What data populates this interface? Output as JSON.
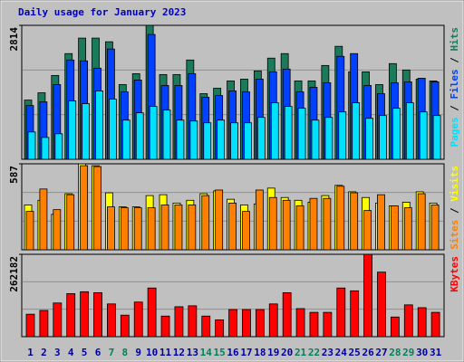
{
  "chart_data": [
    {
      "type": "bar",
      "title": "Daily usage for January 2023",
      "ylim": [
        0,
        2814
      ],
      "yticks": [
        2814
      ],
      "legend_separator": " / ",
      "series": [
        {
          "name": "Hits",
          "color": "#1a7a5a",
          "values": [
            1244,
            1397,
            1761,
            2220,
            2546,
            2546,
            2469,
            1569,
            1799,
            2814,
            1780,
            1780,
            2086,
            1378,
            1493,
            1646,
            1684,
            1857,
            2125,
            2220,
            1646,
            1646,
            1971,
            2373,
            1837,
            1837,
            1569,
            2010,
            1876,
            1684,
            1646
          ]
        },
        {
          "name": "Files",
          "color": "#0040ff",
          "values": [
            1129,
            1206,
            1569,
            2086,
            2067,
            1914,
            2316,
            1416,
            1665,
            2622,
            1550,
            1550,
            1799,
            1302,
            1340,
            1436,
            1416,
            1684,
            1837,
            1895,
            1416,
            1512,
            1608,
            2163,
            2220,
            1550,
            1378,
            1608,
            1627,
            1703,
            1627
          ]
        },
        {
          "name": "Pages",
          "color": "#00e0ff",
          "values": [
            574,
            459,
            536,
            1225,
            1168,
            1436,
            1263,
            823,
            976,
            1110,
            1034,
            823,
            804,
            766,
            823,
            766,
            766,
            880,
            1187,
            1110,
            1072,
            823,
            880,
            995,
            1187,
            861,
            919,
            1072,
            1187,
            995,
            919
          ]
        }
      ]
    },
    {
      "type": "bar",
      "ylim": [
        0,
        587
      ],
      "yticks": [
        587
      ],
      "legend_separator": " / ",
      "series": [
        {
          "name": "Visits",
          "color": "#ffff00",
          "values": [
            306,
            338,
            242,
            383,
            587,
            574,
            389,
            293,
            293,
            370,
            376,
            319,
            338,
            383,
            402,
            345,
            306,
            313,
            421,
            357,
            338,
            325,
            370,
            440,
            396,
            357,
            319,
            300,
            325,
            396,
            319
          ]
        },
        {
          "name": "Sites",
          "color": "#ff8000",
          "values": [
            262,
            415,
            274,
            376,
            574,
            568,
            293,
            287,
            287,
            287,
            306,
            306,
            306,
            370,
            408,
            319,
            262,
            408,
            357,
            338,
            300,
            351,
            351,
            434,
            389,
            268,
            376,
            300,
            287,
            383,
            306
          ]
        }
      ]
    },
    {
      "type": "bar",
      "ylim": [
        0,
        262182
      ],
      "yticks": [
        262182
      ],
      "categories": [
        "1",
        "2",
        "3",
        "4",
        "5",
        "6",
        "7",
        "8",
        "9",
        "10",
        "11",
        "12",
        "13",
        "14",
        "15",
        "16",
        "17",
        "18",
        "19",
        "20",
        "21",
        "22",
        "23",
        "24",
        "25",
        "26",
        "27",
        "28",
        "29",
        "30",
        "31"
      ],
      "category_colors": [
        "#0000a0",
        "#0000a0",
        "#0000a0",
        "#0000a0",
        "#0000a0",
        "#0000a0",
        "#00805c",
        "#00805c",
        "#0000a0",
        "#0000a0",
        "#0000a0",
        "#0000a0",
        "#0000a0",
        "#00805c",
        "#00805c",
        "#0000a0",
        "#0000a0",
        "#0000a0",
        "#0000a0",
        "#0000a0",
        "#00805c",
        "#00805c",
        "#0000a0",
        "#0000a0",
        "#0000a0",
        "#0000a0",
        "#0000a0",
        "#00805c",
        "#00805c",
        "#0000a0",
        "#0000a0"
      ],
      "series": [
        {
          "name": "KBytes",
          "color": "#ff0000",
          "values": [
            71496,
            83412,
            107244,
            137034,
            142992,
            140013,
            104265,
            68517,
            110223,
            154908,
            65538,
            95328,
            98307,
            65538,
            53622,
            86391,
            86391,
            86391,
            104265,
            140013,
            89370,
            77454,
            77454,
            154908,
            145971,
            262182,
            205551,
            62559,
            101286,
            92349,
            77454
          ]
        }
      ]
    }
  ]
}
